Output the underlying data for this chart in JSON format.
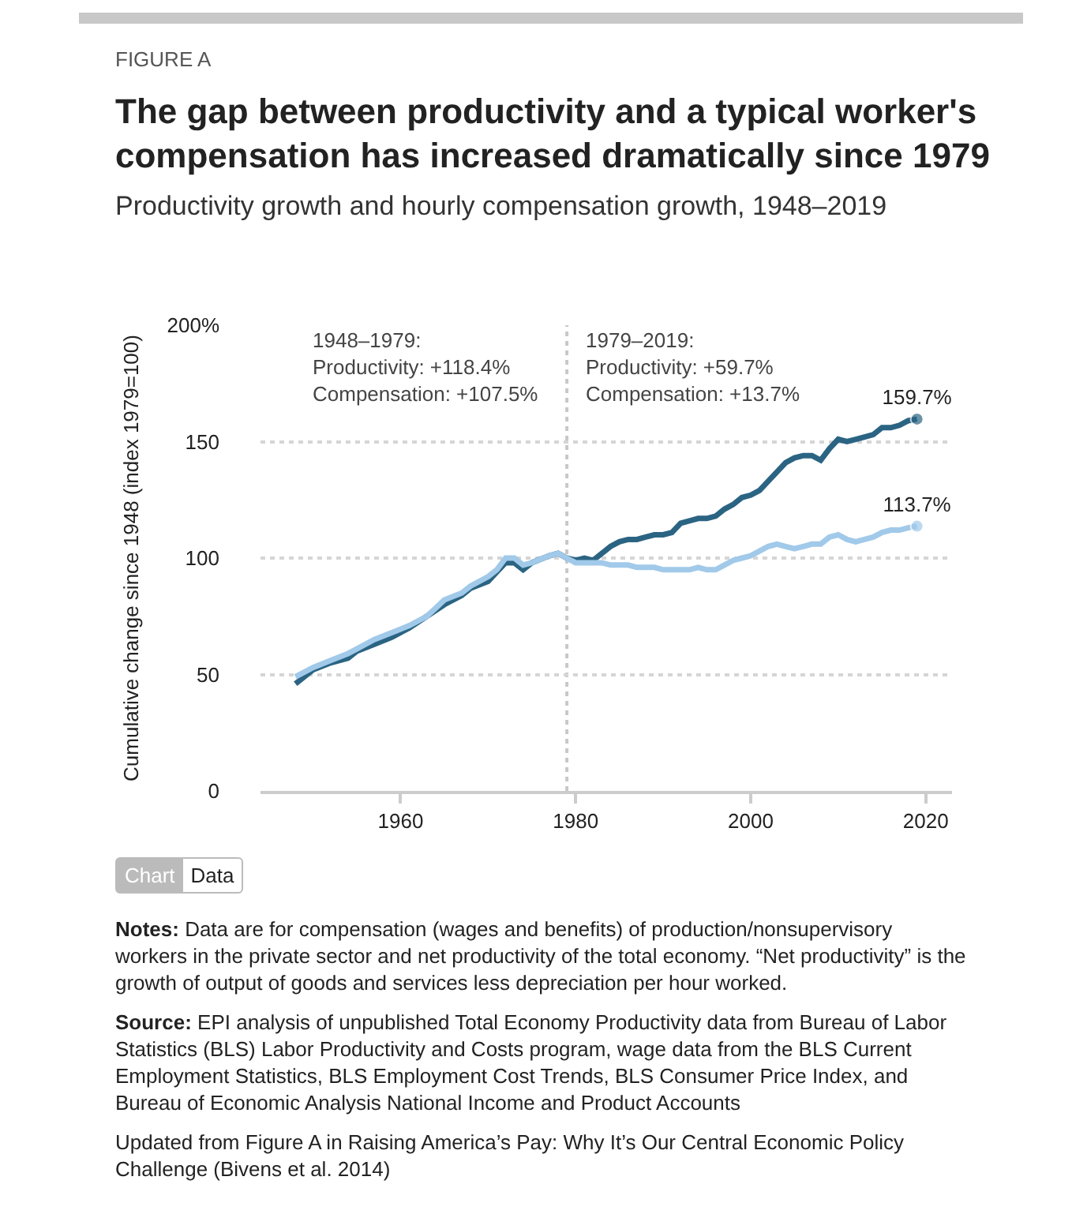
{
  "chart_data": {
    "type": "line",
    "title": "The gap between productivity and a typical worker's compensation has increased dramatically since 1979",
    "subtitle": "Productivity growth and hourly compensation growth, 1948–2019",
    "ylabel": "Cumulative change since 1948 (index 1979=100)",
    "x": [
      1948,
      1950,
      1952,
      1954,
      1955,
      1957,
      1959,
      1961,
      1963,
      1965,
      1967,
      1968,
      1970,
      1971,
      1972,
      1973,
      1974,
      1975,
      1977,
      1978,
      1979,
      1980,
      1981,
      1982,
      1983,
      1984,
      1985,
      1986,
      1987,
      1988,
      1989,
      1990,
      1991,
      1992,
      1993,
      1994,
      1995,
      1996,
      1997,
      1998,
      1999,
      2000,
      2001,
      2002,
      2003,
      2004,
      2005,
      2006,
      2007,
      2008,
      2009,
      2010,
      2011,
      2012,
      2013,
      2014,
      2015,
      2016,
      2017,
      2018,
      2019
    ],
    "series": [
      {
        "color": "#2b6483",
        "values": [
          46,
          52,
          55,
          57,
          60,
          63,
          66,
          70,
          75,
          80,
          84,
          87,
          90,
          94,
          98,
          98,
          95,
          98,
          101,
          102,
          100,
          99,
          100,
          99,
          102,
          105,
          107,
          108,
          108,
          109,
          110,
          110,
          111,
          115,
          116,
          117,
          117,
          118,
          121,
          123,
          126,
          127,
          129,
          133,
          137,
          141,
          143,
          144,
          144,
          142,
          147,
          151,
          150,
          151,
          152,
          153,
          156,
          156,
          157,
          159,
          159.7
        ],
        "value_labels": [
          null,
          null,
          null,
          null,
          null,
          null,
          null,
          null,
          null,
          null,
          null,
          null,
          null,
          null,
          null,
          null,
          null,
          null,
          null,
          null,
          null,
          null,
          null,
          null,
          null,
          null,
          null,
          null,
          null,
          null,
          null,
          null,
          null,
          null,
          null,
          null,
          null,
          null,
          null,
          null,
          null,
          null,
          null,
          null,
          null,
          null,
          null,
          null,
          null,
          null,
          null,
          null,
          null,
          null,
          null,
          null,
          null,
          null,
          null,
          null,
          "159.7%"
        ]
      },
      {
        "color": "#a1c9e9",
        "values": [
          49,
          53,
          56,
          59,
          61,
          65,
          68,
          71,
          75,
          82,
          85,
          88,
          92,
          95,
          100,
          100,
          97,
          98,
          101,
          102,
          100,
          98,
          98,
          98,
          98,
          97,
          97,
          97,
          96,
          96,
          96,
          95,
          95,
          95,
          95,
          96,
          95,
          95,
          97,
          99,
          100,
          101,
          103,
          105,
          106,
          105,
          104,
          105,
          106,
          106,
          109,
          110,
          108,
          107,
          108,
          109,
          111,
          112,
          112,
          113,
          113.7
        ],
        "value_labels": [
          null,
          null,
          null,
          null,
          null,
          null,
          null,
          null,
          null,
          null,
          null,
          null,
          null,
          null,
          null,
          null,
          null,
          null,
          null,
          null,
          null,
          null,
          null,
          null,
          null,
          null,
          null,
          null,
          null,
          null,
          null,
          null,
          null,
          null,
          null,
          null,
          null,
          null,
          null,
          null,
          null,
          null,
          null,
          null,
          null,
          null,
          null,
          null,
          null,
          null,
          null,
          null,
          null,
          null,
          null,
          null,
          null,
          null,
          null,
          null,
          "113.7%"
        ]
      }
    ],
    "xlim": [
      1944,
      2023
    ],
    "xticks": [
      1960,
      1980,
      2000,
      2020
    ],
    "ylim": [
      0,
      200
    ],
    "yticks": [
      {
        "value": 0,
        "label": "0"
      },
      {
        "value": 50,
        "label": "50"
      },
      {
        "value": 100,
        "label": "100"
      },
      {
        "value": 150,
        "label": "150"
      },
      {
        "value": 200,
        "label": "200%"
      }
    ],
    "grid": "y",
    "line_style": "solid",
    "ref_lines": [
      {
        "axis": "x",
        "value": 1979,
        "line_style": "dotted",
        "color": "#c8c8c8"
      }
    ],
    "annotations": [
      "FIGURE A",
      "1948–1979:\nProductivity: +118.4%\nCompensation: +107.5%",
      "1979–2019:\nProductivity: +59.7%\nCompensation: +13.7%",
      "Chart",
      "Data",
      "Notes: Data are for compensation (wages and benefits) of production/nonsupervisory workers in the private sector and net productivity of the total economy. “Net productivity” is the growth of output of goods and services less depreciation per hour worked.",
      "Source: EPI analysis of unpublished Total Economy Productivity data from Bureau of Labor Statistics (BLS) Labor Productivity and Costs program, wage data from the BLS Current Employment Statistics, BLS Employment Cost Trends, BLS Consumer Price Index, and Bureau of Economic Analysis National Income and Product Accounts",
      "Updated from Figure A in Raising America’s Pay: Why It’s Our Central Economic Policy Challenge (Bivens et al. 2014)"
    ]
  }
}
